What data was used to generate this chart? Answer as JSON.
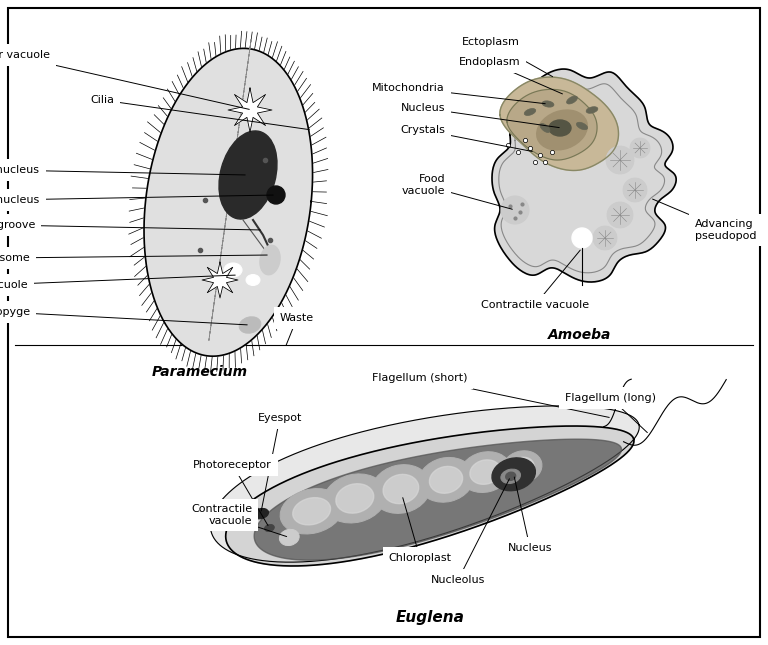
{
  "bg_color": "#ffffff",
  "fig_width": 7.68,
  "fig_height": 6.45,
  "dpi": 100,
  "fs": 8,
  "title_fs": 10,
  "paramecium_title": "Paramecium",
  "amoeba_title": "Amoeba",
  "euglena_title": "Euglena"
}
